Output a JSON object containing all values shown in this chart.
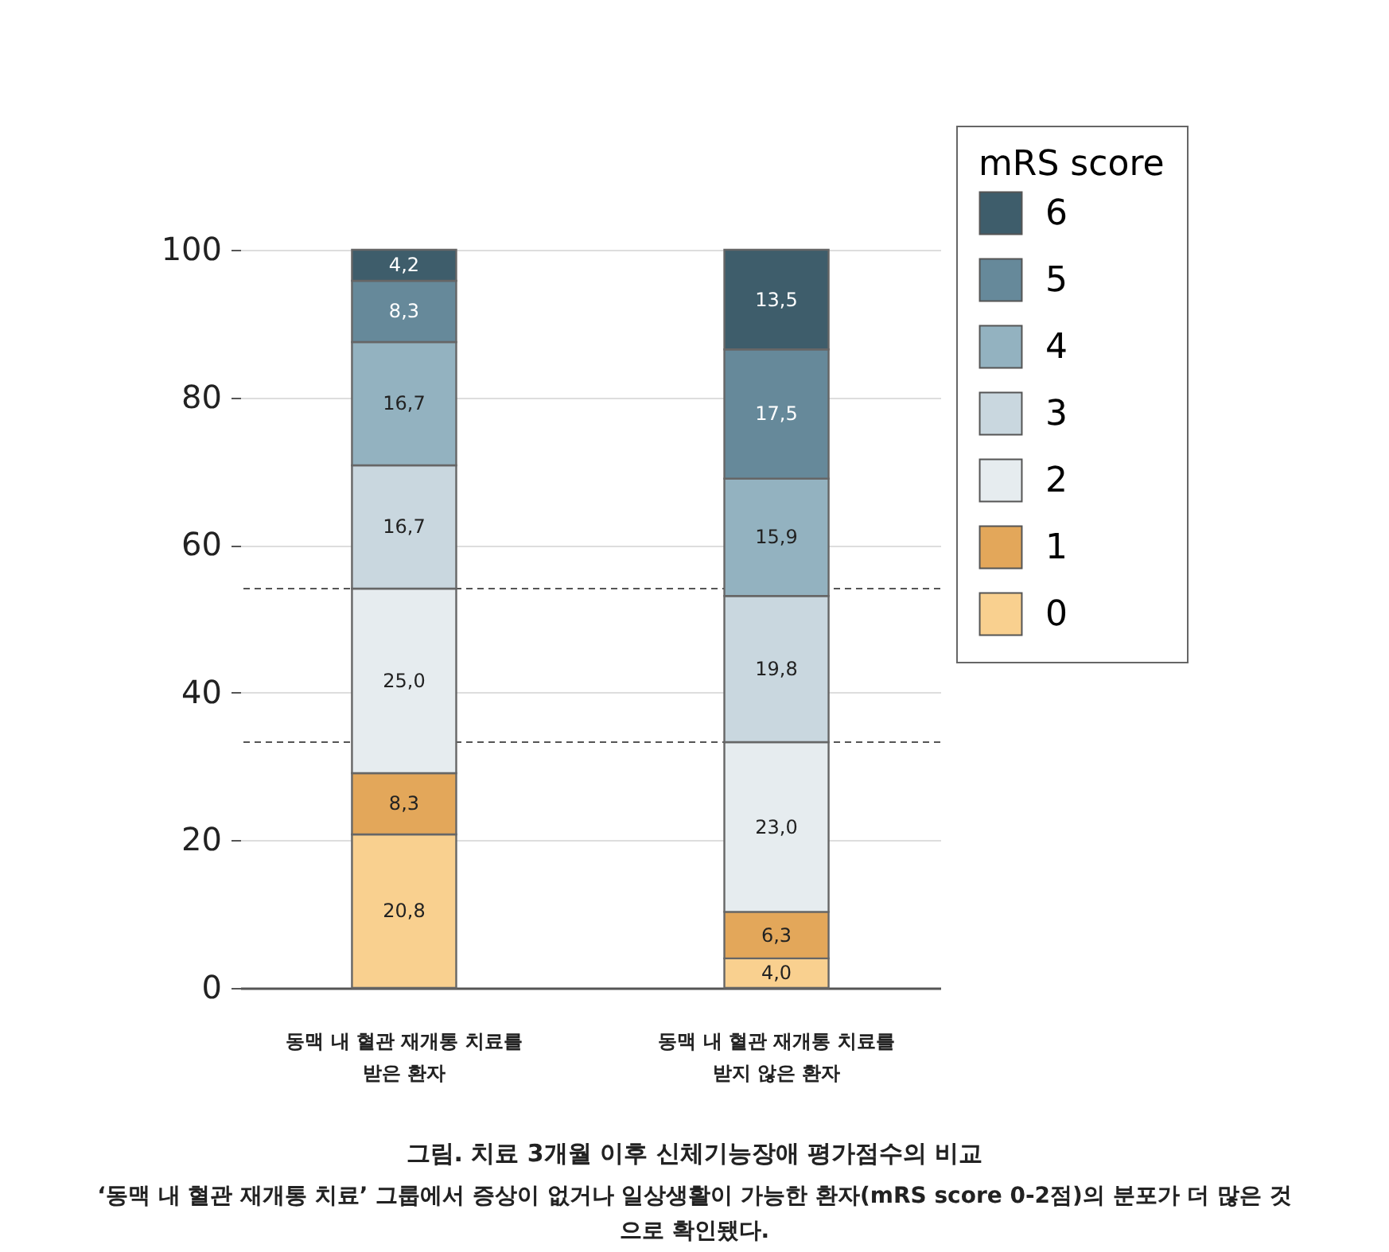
{
  "chart_data": {
    "type": "bar",
    "stacked": true,
    "title": "그림. 치료 3개월 이후 신체기능장애 평가점수의 비교",
    "subtitle": "‘동맥 내 혈관 재개통 치료’ 그룹에서 증상이 없거나 일상생활이 가능한 환자(mRS score 0-2점)의 분포가 더 많은 것으로 확인됐다.",
    "legend_title": "mRS score",
    "legend": "top right",
    "grid": "y",
    "categories": [
      "동맥 내 혈관 재개통 치료를\n받은 환자",
      "동맥 내 혈관 재개통 치료를\n받지 않은 환자"
    ],
    "ylim": [
      0,
      100
    ],
    "yticks": [
      0,
      20,
      40,
      60,
      80,
      100
    ],
    "series": [
      {
        "name": "0",
        "color": "#f9d08f",
        "values": [
          20.8,
          4.0
        ],
        "value_labels": [
          "20,8",
          "4,0"
        ]
      },
      {
        "name": "1",
        "color": "#e3a75a",
        "values": [
          8.3,
          6.3
        ],
        "value_labels": [
          "8,3",
          "6,3"
        ]
      },
      {
        "name": "2",
        "color": "#e6ecef",
        "values": [
          25.0,
          23.0
        ],
        "value_labels": [
          "25,0",
          "23,0"
        ]
      },
      {
        "name": "3",
        "color": "#c9d7df",
        "values": [
          16.7,
          19.8
        ],
        "value_labels": [
          "16,7",
          "19,8"
        ]
      },
      {
        "name": "4",
        "color": "#93b2c0",
        "values": [
          16.7,
          15.9
        ],
        "value_labels": [
          "16,7",
          "15,9"
        ]
      },
      {
        "name": "5",
        "color": "#66899a",
        "values": [
          8.3,
          17.5
        ],
        "value_labels": [
          "8,3",
          "17,5"
        ]
      },
      {
        "name": "6",
        "color": "#3e5d6b",
        "values": [
          4.2,
          13.5
        ],
        "value_labels": [
          "4,2",
          "13,5"
        ]
      }
    ],
    "ref_lines": [
      {
        "axis": "y",
        "value": 54.1,
        "color": "#555555",
        "line_style": "dashed"
      },
      {
        "axis": "y",
        "value": 33.3,
        "color": "#555555",
        "line_style": "dashed"
      }
    ]
  }
}
